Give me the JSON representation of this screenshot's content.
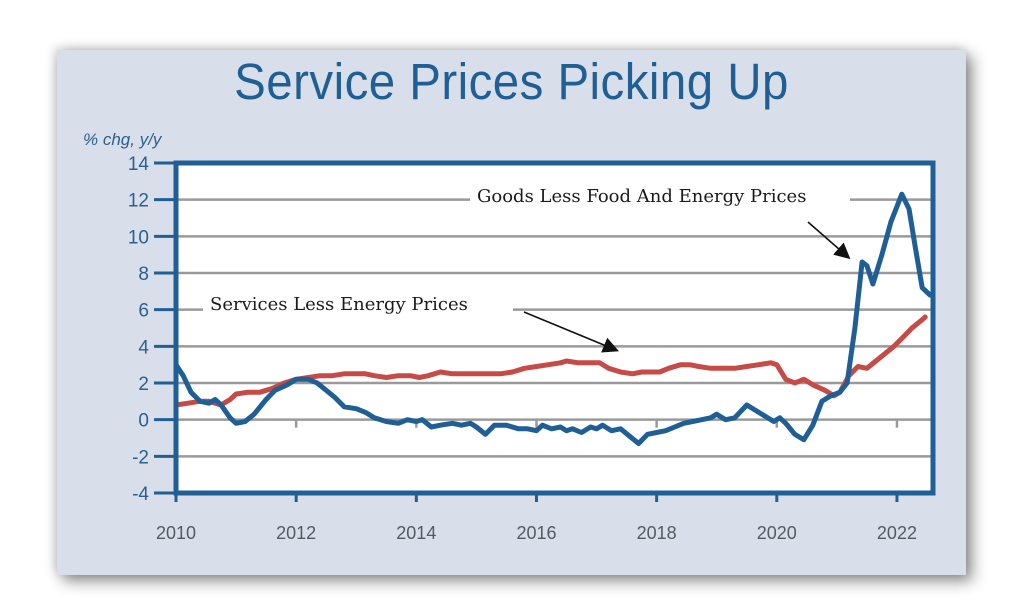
{
  "chart_data": {
    "type": "line",
    "title": "Service Prices Picking Up",
    "ylabel": "% chg, y/y",
    "xlabel": "",
    "ylim": [
      -4,
      14
    ],
    "xlim": [
      2010,
      2022.6
    ],
    "yticks": [
      14,
      12,
      10,
      8,
      6,
      4,
      2,
      0,
      -2,
      -4
    ],
    "xticks": [
      2010,
      2012,
      2014,
      2016,
      2018,
      2020,
      2022
    ],
    "grid": true,
    "colors": {
      "frame": "#1f5f95",
      "goods": "#1f5f95",
      "services": "#c64a45",
      "grid": "#9a9a9a",
      "panel": "#d9dfea"
    },
    "series": [
      {
        "name": "Goods Less Food And Energy Prices",
        "color": "#1f5f95",
        "x": [
          2010.0,
          2010.12,
          2010.25,
          2010.4,
          2010.55,
          2010.65,
          2010.75,
          2010.9,
          2011.0,
          2011.15,
          2011.3,
          2011.5,
          2011.65,
          2011.85,
          2012.0,
          2012.2,
          2012.35,
          2012.5,
          2012.65,
          2012.8,
          2013.0,
          2013.15,
          2013.3,
          2013.5,
          2013.7,
          2013.85,
          2014.0,
          2014.1,
          2014.25,
          2014.4,
          2014.6,
          2014.75,
          2014.9,
          2015.0,
          2015.15,
          2015.3,
          2015.5,
          2015.7,
          2015.85,
          2016.0,
          2016.1,
          2016.25,
          2016.4,
          2016.5,
          2016.6,
          2016.75,
          2016.9,
          2017.0,
          2017.1,
          2017.25,
          2017.4,
          2017.55,
          2017.7,
          2017.85,
          2018.0,
          2018.15,
          2018.3,
          2018.45,
          2018.6,
          2018.75,
          2018.9,
          2019.0,
          2019.15,
          2019.3,
          2019.5,
          2019.65,
          2019.8,
          2019.95,
          2020.05,
          2020.15,
          2020.3,
          2020.45,
          2020.6,
          2020.75,
          2020.9,
          2021.05,
          2021.17,
          2021.3,
          2021.42,
          2021.5,
          2021.6,
          2021.75,
          2021.9,
          2022.08,
          2022.2,
          2022.3,
          2022.42,
          2022.55
        ],
        "values": [
          3.0,
          2.4,
          1.5,
          1.0,
          0.9,
          1.1,
          0.8,
          0.1,
          -0.2,
          -0.1,
          0.3,
          1.1,
          1.6,
          1.9,
          2.2,
          2.2,
          2.0,
          1.6,
          1.2,
          0.7,
          0.6,
          0.4,
          0.1,
          -0.1,
          -0.2,
          0.0,
          -0.1,
          0.0,
          -0.4,
          -0.3,
          -0.2,
          -0.3,
          -0.2,
          -0.4,
          -0.8,
          -0.3,
          -0.3,
          -0.5,
          -0.5,
          -0.6,
          -0.3,
          -0.5,
          -0.4,
          -0.6,
          -0.5,
          -0.7,
          -0.4,
          -0.5,
          -0.3,
          -0.6,
          -0.5,
          -0.9,
          -1.3,
          -0.8,
          -0.7,
          -0.6,
          -0.4,
          -0.2,
          -0.1,
          0.0,
          0.1,
          0.3,
          0.0,
          0.1,
          0.8,
          0.5,
          0.2,
          -0.1,
          0.1,
          -0.2,
          -0.8,
          -1.1,
          -0.3,
          1.0,
          1.3,
          1.5,
          2.0,
          5.0,
          8.6,
          8.4,
          7.4,
          9.0,
          10.8,
          12.3,
          11.5,
          9.5,
          7.2,
          6.8
        ]
      },
      {
        "name": "Services Less Energy Prices",
        "color": "#c64a45",
        "x": [
          2010.0,
          2010.2,
          2010.4,
          2010.55,
          2010.75,
          2010.9,
          2011.0,
          2011.2,
          2011.4,
          2011.6,
          2011.8,
          2012.0,
          2012.2,
          2012.4,
          2012.6,
          2012.8,
          2013.0,
          2013.15,
          2013.3,
          2013.5,
          2013.7,
          2013.9,
          2014.05,
          2014.2,
          2014.4,
          2014.6,
          2014.8,
          2015.0,
          2015.2,
          2015.4,
          2015.6,
          2015.8,
          2016.0,
          2016.2,
          2016.4,
          2016.5,
          2016.7,
          2016.9,
          2017.05,
          2017.2,
          2017.4,
          2017.6,
          2017.75,
          2017.9,
          2018.05,
          2018.2,
          2018.4,
          2018.55,
          2018.7,
          2018.9,
          2019.1,
          2019.3,
          2019.5,
          2019.7,
          2019.9,
          2020.0,
          2020.15,
          2020.3,
          2020.45,
          2020.6,
          2020.8,
          2020.95,
          2021.05,
          2021.2,
          2021.35,
          2021.5,
          2021.65,
          2021.8,
          2021.95,
          2022.1,
          2022.25,
          2022.4,
          2022.47
        ],
        "values": [
          0.8,
          0.9,
          1.0,
          1.0,
          0.8,
          1.1,
          1.4,
          1.5,
          1.5,
          1.7,
          2.0,
          2.2,
          2.3,
          2.4,
          2.4,
          2.5,
          2.5,
          2.5,
          2.4,
          2.3,
          2.4,
          2.4,
          2.3,
          2.4,
          2.6,
          2.5,
          2.5,
          2.5,
          2.5,
          2.5,
          2.6,
          2.8,
          2.9,
          3.0,
          3.1,
          3.2,
          3.1,
          3.1,
          3.1,
          2.8,
          2.6,
          2.5,
          2.6,
          2.6,
          2.6,
          2.8,
          3.0,
          3.0,
          2.9,
          2.8,
          2.8,
          2.8,
          2.9,
          3.0,
          3.1,
          3.0,
          2.2,
          2.0,
          2.2,
          1.9,
          1.6,
          1.3,
          1.5,
          2.4,
          2.9,
          2.8,
          3.2,
          3.6,
          4.0,
          4.5,
          5.0,
          5.4,
          5.6
        ]
      }
    ],
    "annotations": [
      {
        "text": "Goods Less Food And Energy Prices",
        "target_series": "Goods Less Food And Energy Prices",
        "arrow_to": [
          2021.35,
          8.6
        ]
      },
      {
        "text": "Services Less Energy Prices",
        "target_series": "Services Less Energy Prices",
        "arrow_to": [
          2017.45,
          3.6
        ]
      }
    ]
  }
}
